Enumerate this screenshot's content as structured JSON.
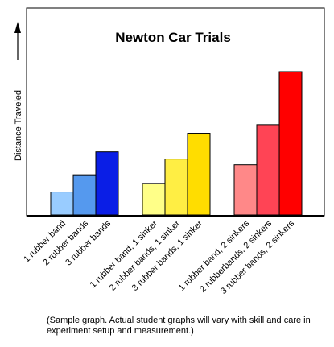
{
  "chart_data": {
    "type": "bar",
    "title": "Newton Car Trials",
    "ylabel": "Distance Traveled",
    "xlabel": "",
    "ylim": [
      0,
      100
    ],
    "grid": false,
    "legend": "none",
    "categories": [
      "1 rubber band",
      "2 rubber bands",
      "3 rubber bands",
      "1 rubber band, 1 sinker",
      "2 rubber bands, 1 sinker",
      "3 rubber bands, 1 sinker",
      "1 rubber band, 2 sinkers",
      "2 rubberbands, 2 sinkers",
      "3 rubber bands, 2 sinkers"
    ],
    "groups": [
      {
        "members": [
          0,
          1,
          2
        ],
        "colors": [
          "#99ccff",
          "#5599ee",
          "#0a1ee6"
        ]
      },
      {
        "members": [
          3,
          4,
          5
        ],
        "colors": [
          "#ffff88",
          "#ffee44",
          "#ffdd00"
        ]
      },
      {
        "members": [
          6,
          7,
          8
        ],
        "colors": [
          "#ff8888",
          "#ff4455",
          "#ff0000"
        ]
      }
    ],
    "values": [
      16,
      28,
      44,
      22,
      39,
      57,
      35,
      63,
      100
    ]
  },
  "caption": "(Sample graph.  Actual student graphs will vary with skill and care in experiment setup and measurement.)"
}
